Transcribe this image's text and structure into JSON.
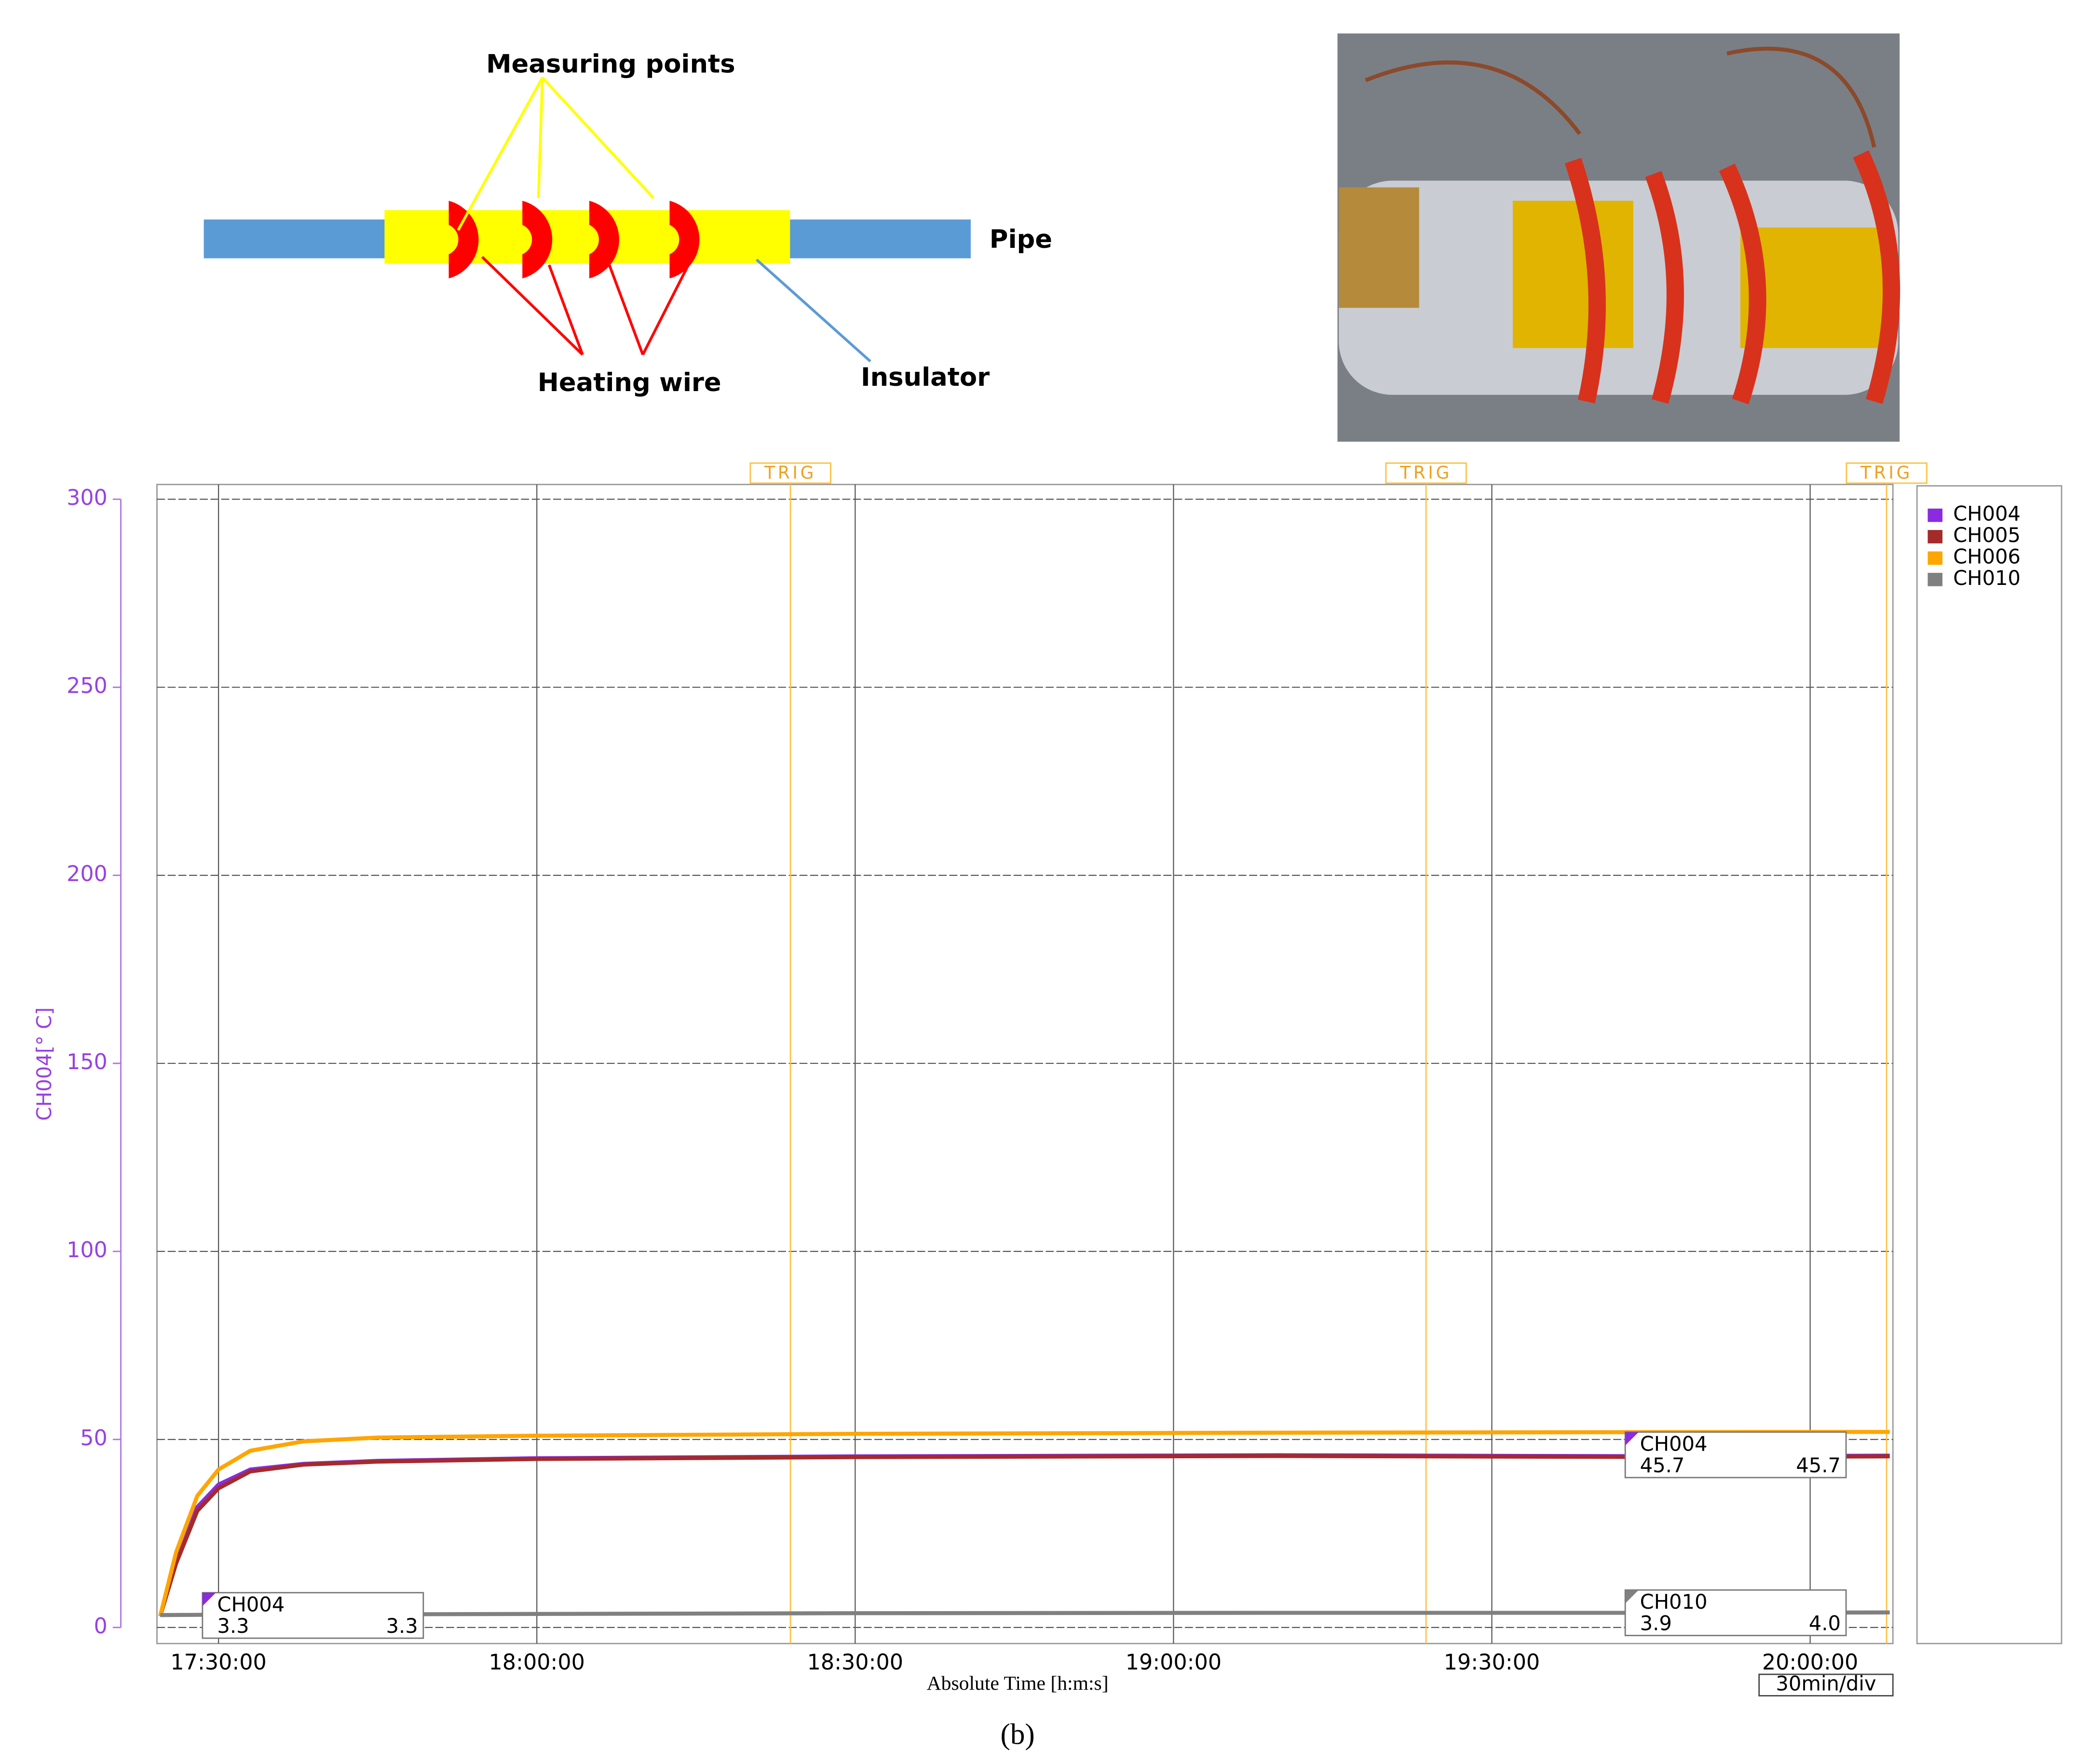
{
  "diagram": {
    "measuring_label": "Measuring points",
    "pipe_label": "Pipe",
    "heating_label": "Heating wire",
    "insulator_label": "Insulator"
  },
  "caption": "(b)",
  "chart_data": {
    "type": "line",
    "y_label": "CH004[° C]",
    "x_label": "Absolute Time [h:m:s]",
    "scale_label": "30min/div",
    "xlim": [
      1044.2,
      1207.8
    ],
    "ylim": [
      0,
      300
    ],
    "xticks": [
      {
        "value": 1050,
        "label": "17:30:00"
      },
      {
        "value": 1080,
        "label": "18:00:00"
      },
      {
        "value": 1110,
        "label": "18:30:00"
      },
      {
        "value": 1140,
        "label": "19:00:00"
      },
      {
        "value": 1170,
        "label": "19:30:00"
      },
      {
        "value": 1200,
        "label": "20:00:00"
      }
    ],
    "yticks": [
      0,
      50,
      100,
      150,
      200,
      250,
      300
    ],
    "grid": true,
    "triggers": [
      {
        "x": 1103.9,
        "label": "TRIG"
      },
      {
        "x": 1163.8,
        "label": "TRIG"
      },
      {
        "x": 1207.2,
        "label": "TRIG"
      }
    ],
    "series": [
      {
        "name": "CH004",
        "color": "#8a2be2",
        "x": [
          1044.5,
          1046,
          1048,
          1050,
          1053,
          1058,
          1065,
          1080,
          1110,
          1150,
          1190,
          1207.5
        ],
        "values": [
          3,
          18,
          32,
          38,
          42,
          43.5,
          44.3,
          45,
          45.5,
          45.8,
          45.5,
          45.7
        ]
      },
      {
        "name": "CH005",
        "color": "#a52a2a",
        "x": [
          1044.5,
          1046,
          1048,
          1050,
          1053,
          1058,
          1065,
          1080,
          1110,
          1150,
          1190,
          1207.5
        ],
        "values": [
          3,
          17,
          31,
          37,
          41.5,
          43.3,
          44.1,
          44.8,
          45.3,
          45.6,
          45.3,
          45.5
        ]
      },
      {
        "name": "CH006",
        "color": "#ffa500",
        "x": [
          1044.5,
          1046,
          1048,
          1050,
          1053,
          1058,
          1065,
          1080,
          1110,
          1150,
          1200,
          1207.5
        ],
        "values": [
          3,
          20,
          35,
          42,
          47,
          49.5,
          50.5,
          51,
          51.5,
          51.8,
          52,
          52
        ]
      },
      {
        "name": "CH010",
        "color": "#808080",
        "x": [
          1044.5,
          1050,
          1080,
          1110,
          1150,
          1190,
          1207.5
        ],
        "values": [
          3.3,
          3.4,
          3.6,
          3.8,
          3.9,
          3.9,
          4.0
        ]
      }
    ],
    "cursors": [
      {
        "name": "CH004",
        "v1": "3.3",
        "v2": "3.3",
        "color": "#8a2be2"
      },
      {
        "name": "CH004",
        "v1": "45.7",
        "v2": "45.7",
        "color": "#8a2be2"
      },
      {
        "name": "CH010",
        "v1": "3.9",
        "v2": "4.0",
        "color": "#808080"
      }
    ]
  }
}
